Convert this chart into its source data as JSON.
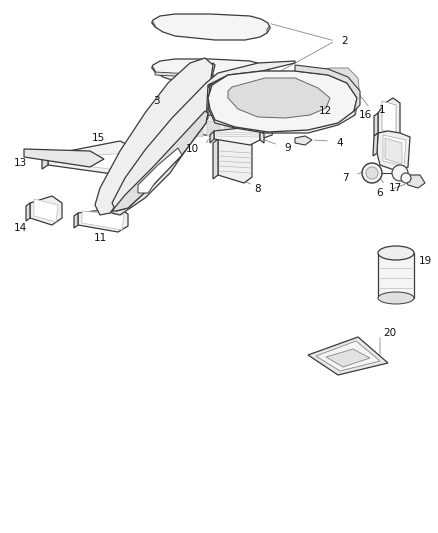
{
  "background_color": "#ffffff",
  "line_color": "#3a3a3a",
  "label_color": "#111111",
  "leader_color": "#888888",
  "figsize": [
    4.38,
    5.33
  ],
  "dpi": 100
}
